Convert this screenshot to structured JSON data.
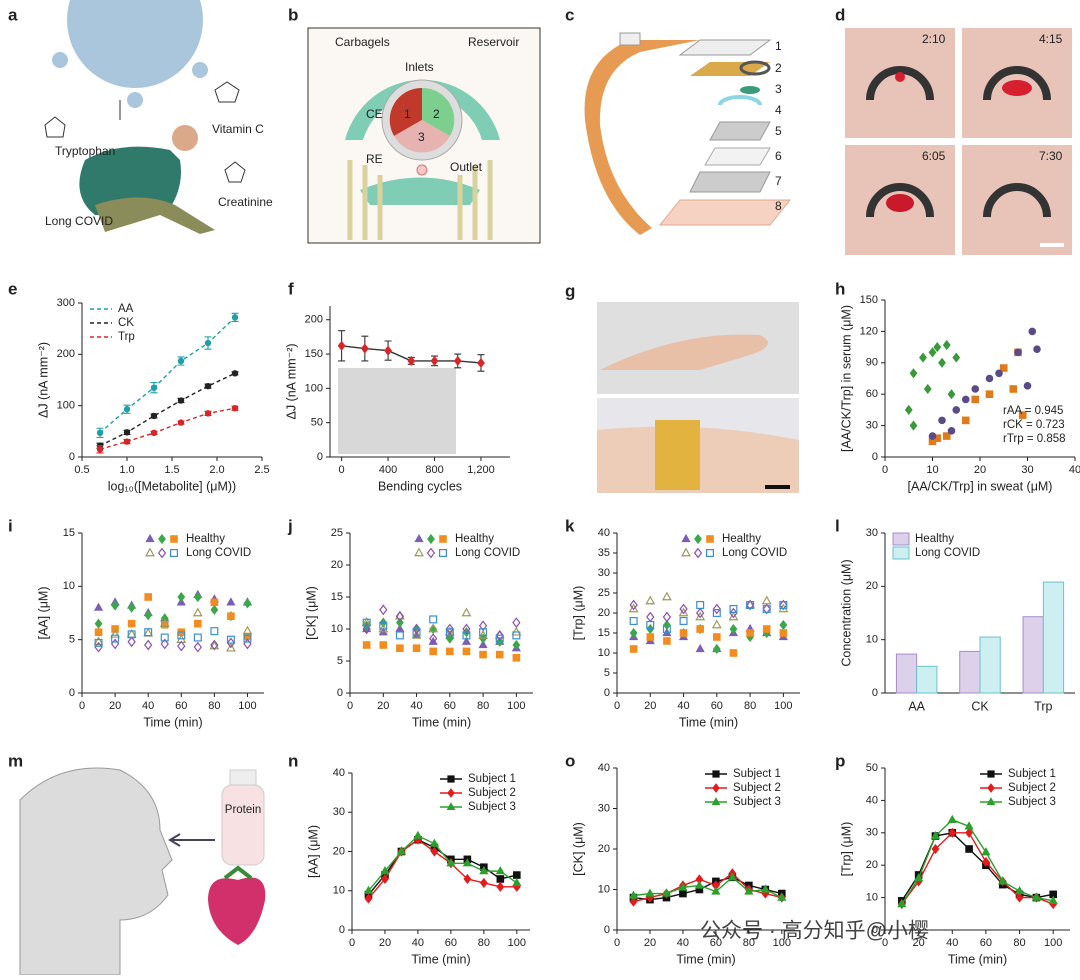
{
  "panels": {
    "a": {
      "letter": "a",
      "labels": [
        "Tryptophan",
        "Vitamin C",
        "Creatinine",
        "Long COVID"
      ]
    },
    "b": {
      "letter": "b",
      "labels": [
        "Carbagels",
        "Reservoir",
        "Inlets",
        "CE",
        "1",
        "2",
        "3",
        "RE",
        "Outlet"
      ]
    },
    "c": {
      "letter": "c",
      "layers": [
        "1",
        "2",
        "3",
        "4",
        "5",
        "6",
        "7",
        "8"
      ]
    },
    "d": {
      "letter": "d",
      "times": [
        "2:10",
        "4:15",
        "6:05",
        "7:30"
      ]
    },
    "g": {
      "letter": "g"
    },
    "m": {
      "letter": "m",
      "bottle": "Protein"
    }
  },
  "watermark": "公众号 · 高分知乎@小樱",
  "chart_data": [
    {
      "panel": "e",
      "type": "line",
      "line_style": "dashed",
      "legend": "upper left",
      "x": [
        0.7,
        1.0,
        1.3,
        1.6,
        1.9,
        2.2
      ],
      "xlim": [
        0.5,
        2.5
      ],
      "xticks": [
        0.5,
        {
          "value": 1,
          "label": "1.0"
        },
        1.5,
        {
          "value": 2,
          "label": "2.0"
        },
        2.5
      ],
      "ylim": [
        0,
        300
      ],
      "yticks": [
        0,
        100,
        200,
        300
      ],
      "xlabel": "log₁₀([Metabolite] (μM))",
      "ylabel": "ΔJ (nA mm⁻²)",
      "series": [
        {
          "name": "AA",
          "color": "#1f9fa8",
          "marker": "circle",
          "values": [
            47,
            93,
            135,
            187,
            222,
            272
          ],
          "errors": [
            9,
            8,
            10,
            8,
            12,
            8
          ]
        },
        {
          "name": "CK",
          "color": "#222222",
          "marker": "circle",
          "values": [
            22,
            48,
            80,
            110,
            138,
            163
          ],
          "errors": [
            5,
            4,
            4,
            4,
            4,
            3
          ]
        },
        {
          "name": "Trp",
          "color": "#d62728",
          "marker": "circle",
          "values": [
            15,
            30,
            47,
            67,
            85,
            95
          ],
          "errors": [
            7,
            4,
            3,
            3,
            4,
            4
          ]
        }
      ]
    },
    {
      "panel": "f",
      "type": "line",
      "x": [
        0,
        200,
        400,
        600,
        800,
        1000,
        1200
      ],
      "xlim": [
        -100,
        1450
      ],
      "xticks": [
        0,
        400,
        800,
        {
          "value": 1200,
          "label": "1,200"
        }
      ],
      "ylim": [
        0,
        220
      ],
      "yticks": [
        0,
        50,
        100,
        150,
        200
      ],
      "xlabel": "Bending cycles",
      "ylabel": "ΔJ (nA mm⁻²)",
      "series": [
        {
          "color": "#333333",
          "marker": "diamond",
          "marker_color": "#d62728",
          "values": [
            162,
            158,
            155,
            140,
            140,
            140,
            137
          ],
          "errors": [
            22,
            18,
            14,
            5,
            7,
            10,
            12
          ]
        }
      ]
    },
    {
      "panel": "h",
      "type": "scatter",
      "xlim": [
        0,
        40
      ],
      "xticks": [
        0,
        10,
        20,
        30,
        40
      ],
      "ylim": [
        0,
        150
      ],
      "yticks": [
        0,
        30,
        60,
        90,
        120,
        150
      ],
      "xlabel": "[AA/CK/Trp] in sweat (μM)",
      "ylabel": "[AA/CK/Trp] in serum (μM)",
      "annotations": [
        {
          "text": "rAA = 0.945",
          "color": "#e07b1a"
        },
        {
          "text": "rCK = 0.723",
          "color": "#3a9a3a"
        },
        {
          "text": "rTrp = 0.858",
          "color": "#5a4a8a"
        }
      ],
      "series": [
        {
          "color": "#e07b1a",
          "marker": "square",
          "x": [
            10,
            11,
            13,
            17,
            19,
            22,
            25,
            27,
            28,
            29
          ],
          "values": [
            15,
            18,
            20,
            35,
            55,
            60,
            85,
            65,
            100,
            40
          ]
        },
        {
          "color": "#3a9a3a",
          "marker": "diamond",
          "x": [
            5,
            6,
            6,
            8,
            9,
            10,
            11,
            12,
            13,
            14,
            15
          ],
          "values": [
            45,
            30,
            80,
            95,
            65,
            100,
            105,
            90,
            107,
            60,
            95
          ]
        },
        {
          "color": "#5a4a8a",
          "marker": "circle",
          "x": [
            10,
            12,
            14,
            15,
            17,
            19,
            22,
            24,
            28,
            30,
            31,
            32
          ],
          "values": [
            20,
            35,
            25,
            45,
            55,
            65,
            75,
            80,
            100,
            68,
            120,
            103
          ]
        }
      ]
    },
    {
      "panel": "i",
      "type": "scatter",
      "legend": "upper right",
      "x": [
        10,
        20,
        30,
        40,
        50,
        60,
        70,
        80,
        90,
        100
      ],
      "xlim": [
        0,
        110
      ],
      "xticks": [
        0,
        20,
        40,
        60,
        80,
        100
      ],
      "ylim": [
        0,
        15
      ],
      "yticks": [
        0,
        5,
        10,
        15
      ],
      "xlabel": "Time (min)",
      "ylabel": "[AA] (μM)",
      "groups": [
        {
          "name": "Healthy",
          "series": [
            {
              "color": "#7b5fb5",
              "marker": "triangle",
              "values": [
                8,
                8.5,
                8.2,
                7.5,
                7,
                8.5,
                9.2,
                8.8,
                8.5,
                8.5
              ]
            },
            {
              "color": "#3aa84a",
              "marker": "diamond",
              "values": [
                6.5,
                8.2,
                8,
                7.3,
                7,
                9,
                9,
                7.8,
                7.2,
                8.4
              ]
            },
            {
              "color": "#f28c1e",
              "marker": "square",
              "values": [
                5.7,
                6,
                6.5,
                9,
                6.4,
                5.7,
                6.5,
                8.5,
                7.2,
                5.3
              ]
            }
          ]
        },
        {
          "name": "Long COVID",
          "series": [
            {
              "color": "#9a9a5a",
              "marker": "triangle",
              "open": true,
              "values": [
                4.8,
                5.5,
                5.5,
                5.6,
                6.5,
                5,
                7.5,
                4.4,
                4.2,
                5.8
              ]
            },
            {
              "color": "#8a4fb0",
              "marker": "diamond",
              "open": true,
              "values": [
                4.3,
                4.6,
                4.8,
                4.5,
                4.6,
                4.4,
                4.3,
                4.5,
                4.7,
                4.6
              ]
            },
            {
              "color": "#3a8fd0",
              "marker": "square",
              "open": true,
              "values": [
                4.7,
                5.1,
                5.5,
                5.7,
                5.2,
                5.4,
                5.2,
                5.8,
                5,
                5.1
              ]
            }
          ]
        }
      ]
    },
    {
      "panel": "j",
      "type": "scatter",
      "legend": "upper right",
      "x": [
        10,
        20,
        30,
        40,
        50,
        60,
        70,
        80,
        90,
        100
      ],
      "xlim": [
        0,
        110
      ],
      "xticks": [
        0,
        20,
        40,
        60,
        80,
        100
      ],
      "ylim": [
        0,
        25
      ],
      "yticks": [
        0,
        5,
        10,
        15,
        20,
        25
      ],
      "xlabel": "Time (min)",
      "ylabel": "[CK] (μM)",
      "groups": [
        {
          "name": "Healthy",
          "series": [
            {
              "color": "#7b5fb5",
              "marker": "triangle",
              "values": [
                10,
                9.5,
                10,
                9,
                8,
                9,
                8,
                7.5,
                8,
                7
              ]
            },
            {
              "color": "#3aa84a",
              "marker": "diamond",
              "values": [
                10.5,
                11,
                11,
                10,
                10,
                8.5,
                9.5,
                8.5,
                8,
                7.5
              ]
            },
            {
              "color": "#f28c1e",
              "marker": "square",
              "values": [
                7.5,
                7.5,
                7,
                7,
                6.5,
                6.5,
                6.5,
                6,
                6,
                5.5
              ]
            }
          ]
        },
        {
          "name": "Long COVID",
          "series": [
            {
              "color": "#9a9a5a",
              "marker": "triangle",
              "open": true,
              "values": [
                11,
                10,
                12,
                9,
                10,
                9.5,
                12.5,
                9,
                9,
                9.5
              ]
            },
            {
              "color": "#8a4fb0",
              "marker": "diamond",
              "open": true,
              "values": [
                10,
                13,
                12,
                10,
                8.5,
                10,
                10,
                10.5,
                9,
                11
              ]
            },
            {
              "color": "#3a8fd0",
              "marker": "square",
              "open": true,
              "values": [
                11,
                10.5,
                9,
                9.5,
                11.5,
                9.5,
                9,
                9.5,
                8.5,
                9
              ]
            }
          ]
        }
      ]
    },
    {
      "panel": "k",
      "type": "scatter",
      "legend": "upper right",
      "x": [
        10,
        20,
        30,
        40,
        50,
        60,
        70,
        80,
        90,
        100
      ],
      "xlim": [
        0,
        110
      ],
      "xticks": [
        0,
        20,
        40,
        60,
        80,
        100
      ],
      "ylim": [
        0,
        40
      ],
      "yticks": [
        0,
        5,
        10,
        15,
        20,
        25,
        30,
        35,
        40
      ],
      "xlabel": "Time (min)",
      "ylabel": "[Trp] (μM)",
      "groups": [
        {
          "name": "Healthy",
          "series": [
            {
              "color": "#7b5fb5",
              "marker": "triangle",
              "values": [
                14,
                13,
                15,
                14,
                11,
                11,
                15,
                16,
                15,
                14
              ]
            },
            {
              "color": "#3aa84a",
              "marker": "diamond",
              "values": [
                15,
                16,
                17,
                15,
                16,
                11,
                16,
                14,
                15,
                17
              ]
            },
            {
              "color": "#f28c1e",
              "marker": "square",
              "values": [
                11,
                14,
                13,
                15,
                16,
                14,
                10,
                15,
                16,
                15
              ]
            }
          ]
        },
        {
          "name": "Long COVID",
          "series": [
            {
              "color": "#9a9a5a",
              "marker": "triangle",
              "open": true,
              "values": [
                21,
                23,
                24,
                20,
                19,
                17,
                19,
                22,
                23,
                21
              ]
            },
            {
              "color": "#8a4fb0",
              "marker": "diamond",
              "open": true,
              "values": [
                22,
                19,
                19,
                21,
                20,
                21,
                20,
                22,
                21,
                22
              ]
            },
            {
              "color": "#3a8fd0",
              "marker": "square",
              "open": true,
              "values": [
                18,
                17,
                16,
                18,
                22,
                20,
                21,
                22,
                21,
                22
              ]
            }
          ]
        }
      ]
    },
    {
      "panel": "l",
      "type": "bar",
      "legend": "upper left",
      "categories": [
        "AA",
        "CK",
        "Trp"
      ],
      "ylim": [
        0,
        30
      ],
      "yticks": [
        0,
        10,
        20,
        30
      ],
      "ylabel": "Concentration (μM)",
      "series": [
        {
          "name": "Healthy",
          "color": "#ddd0ea",
          "edge": "#a58cc8",
          "values": [
            7.3,
            7.8,
            14.3
          ]
        },
        {
          "name": "Long COVID",
          "color": "#cdeff1",
          "edge": "#6cc3ca",
          "values": [
            5,
            10.5,
            20.8
          ]
        }
      ]
    },
    {
      "panel": "n",
      "type": "line",
      "legend": "upper right",
      "x": [
        10,
        20,
        30,
        40,
        50,
        60,
        70,
        80,
        90,
        100
      ],
      "xlim": [
        0,
        108
      ],
      "xticks": [
        0,
        20,
        40,
        60,
        80,
        100
      ],
      "ylim": [
        0,
        40
      ],
      "yticks": [
        0,
        10,
        20,
        30,
        40
      ],
      "xlabel": "Time (min)",
      "ylabel": "[AA] (μM)",
      "series": [
        {
          "name": "Subject 1",
          "color": "#111111",
          "marker": "square",
          "values": [
            9,
            14,
            20,
            23,
            21,
            18,
            18,
            16,
            13,
            14
          ]
        },
        {
          "name": "Subject 2",
          "color": "#e41a1c",
          "marker": "diamond",
          "values": [
            8,
            13,
            20,
            23,
            20,
            17,
            13,
            12,
            11,
            11
          ]
        },
        {
          "name": "Subject 3",
          "color": "#2ca02c",
          "marker": "triangle",
          "values": [
            10,
            15,
            20,
            24,
            22,
            17,
            17,
            15,
            15,
            12
          ]
        }
      ]
    },
    {
      "panel": "o",
      "type": "line",
      "legend": "upper right",
      "x": [
        10,
        20,
        30,
        40,
        50,
        60,
        70,
        80,
        90,
        100
      ],
      "xlim": [
        0,
        108
      ],
      "xticks": [
        0,
        20,
        40,
        60,
        80,
        100
      ],
      "ylim": [
        0,
        40
      ],
      "yticks": [
        0,
        10,
        20,
        30,
        40
      ],
      "xlabel": "Time (min)",
      "ylabel": "[CK] (μM)",
      "series": [
        {
          "name": "Subject 1",
          "color": "#111111",
          "marker": "square",
          "values": [
            8,
            7.5,
            8,
            9,
            10,
            12,
            13,
            11,
            10,
            9
          ]
        },
        {
          "name": "Subject 2",
          "color": "#e41a1c",
          "marker": "diamond",
          "values": [
            7,
            8,
            9,
            11,
            12.5,
            11,
            14,
            10,
            9,
            8
          ]
        },
        {
          "name": "Subject 3",
          "color": "#2ca02c",
          "marker": "triangle",
          "values": [
            8.5,
            9,
            9,
            10.5,
            11,
            9.5,
            13,
            9.5,
            10,
            8
          ]
        }
      ]
    },
    {
      "panel": "p",
      "type": "line",
      "legend": "upper right",
      "x": [
        10,
        20,
        30,
        40,
        50,
        60,
        70,
        80,
        90,
        100
      ],
      "xlim": [
        0,
        110
      ],
      "xticks": [
        0,
        20,
        40,
        60,
        80,
        100
      ],
      "ylim": [
        0,
        50
      ],
      "yticks": [
        0,
        10,
        20,
        30,
        40,
        50
      ],
      "xlabel": "Time (min)",
      "ylabel": "[Trp] (μM)",
      "series": [
        {
          "name": "Subject 1",
          "color": "#111111",
          "marker": "square",
          "values": [
            9,
            17,
            29,
            30,
            25,
            20,
            14,
            11,
            10,
            11
          ]
        },
        {
          "name": "Subject 2",
          "color": "#e41a1c",
          "marker": "diamond",
          "values": [
            8,
            15,
            25,
            30,
            30,
            21,
            15,
            10,
            10,
            8
          ]
        },
        {
          "name": "Subject 3",
          "color": "#2ca02c",
          "marker": "triangle",
          "values": [
            8,
            16,
            29,
            34,
            32,
            24,
            15,
            12,
            10,
            9
          ]
        }
      ]
    }
  ]
}
